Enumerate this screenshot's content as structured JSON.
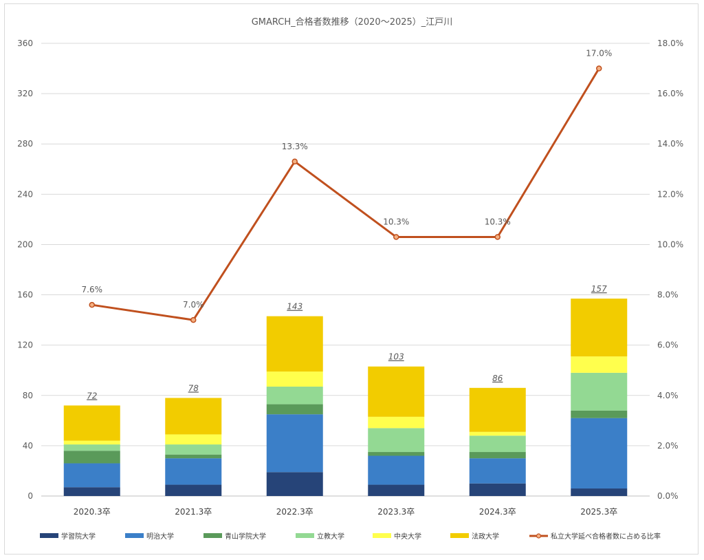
{
  "chart_data": {
    "type": "bar",
    "title": "GMARCH_合格者数推移（2020～2025）_江戸川",
    "categories": [
      "2020.3卒",
      "2021.3卒",
      "2022.3卒",
      "2023.3卒",
      "2024.3卒",
      "2025.3卒"
    ],
    "stacked": true,
    "series": [
      {
        "name": "学習院大学",
        "color": "#264478",
        "values": [
          7,
          9,
          19,
          9,
          10,
          6
        ]
      },
      {
        "name": "明治大学",
        "color": "#3b7fc8",
        "values": [
          19,
          21,
          46,
          23,
          20,
          56
        ]
      },
      {
        "name": "青山学院大学",
        "color": "#5a9a5a",
        "values": [
          10,
          3,
          8,
          3,
          5,
          6
        ]
      },
      {
        "name": "立教大学",
        "color": "#93d993",
        "values": [
          5,
          8,
          14,
          19,
          13,
          30
        ]
      },
      {
        "name": "中央大学",
        "color": "#ffff4d",
        "values": [
          3,
          8,
          12,
          9,
          3,
          13
        ]
      },
      {
        "name": "法政大学",
        "color": "#f2cc00",
        "values": [
          28,
          29,
          44,
          40,
          35,
          46
        ]
      }
    ],
    "totals": [
      "72",
      "78",
      "143",
      "103",
      "86",
      "157"
    ],
    "line_series": {
      "name": "私立大学延べ合格者数に占める比率",
      "color": "#c0501e",
      "values": [
        7.6,
        7.0,
        13.3,
        10.3,
        10.3,
        17.0
      ],
      "labels": [
        "7.6%",
        "7.0%",
        "13.3%",
        "10.3%",
        "10.3%",
        "17.0%"
      ]
    },
    "y_left": {
      "min": 0,
      "max": 360,
      "ticks": [
        "0",
        "40",
        "80",
        "120",
        "160",
        "200",
        "240",
        "280",
        "320",
        "360"
      ]
    },
    "y_right": {
      "min": 0,
      "max": 18,
      "ticks": [
        "0.0%",
        "2.0%",
        "4.0%",
        "6.0%",
        "8.0%",
        "10.0%",
        "12.0%",
        "14.0%",
        "16.0%",
        "18.0%"
      ]
    },
    "grid": true,
    "legend_position": "bottom"
  }
}
